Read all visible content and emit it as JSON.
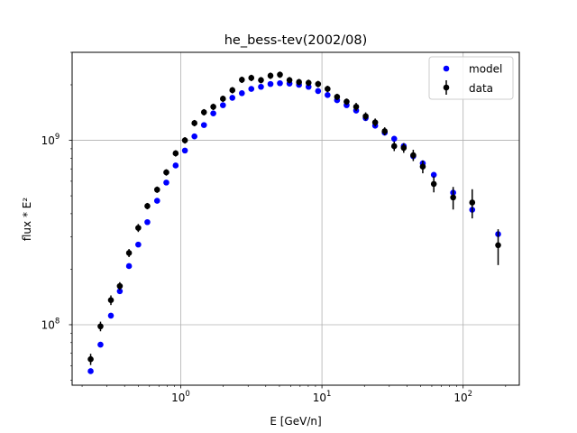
{
  "chart_data": {
    "type": "scatter",
    "title": "he_bess-tev(2002/08)",
    "xlabel": "E [GeV/n]",
    "ylabel": "flux * E²",
    "xscale": "log",
    "yscale": "log",
    "xlim": [
      0.17,
      250
    ],
    "ylim": [
      47000000.0,
      3000000000.0
    ],
    "grid": true,
    "legend_loc": "top-right",
    "x_ticks": [
      {
        "value": 1,
        "base": "10",
        "exp": "0"
      },
      {
        "value": 10,
        "base": "10",
        "exp": "1"
      },
      {
        "value": 100,
        "base": "10",
        "exp": "2"
      }
    ],
    "y_ticks": [
      {
        "value": 100000000.0,
        "base": "10",
        "exp": "8"
      },
      {
        "value": 1000000000.0,
        "base": "10",
        "exp": "9"
      }
    ],
    "series": [
      {
        "name": "model",
        "marker": "dot",
        "color": "#0000ff",
        "x": [
          0.23,
          0.27,
          0.32,
          0.37,
          0.43,
          0.5,
          0.58,
          0.68,
          0.79,
          0.92,
          1.07,
          1.25,
          1.46,
          1.7,
          1.99,
          2.32,
          2.71,
          3.16,
          3.7,
          4.32,
          5.04,
          5.89,
          6.88,
          8.04,
          9.39,
          10.96,
          12.8,
          14.95,
          17.47,
          20.4,
          23.83,
          27.83,
          32.5,
          37.96,
          44.34,
          51.79,
          62.0,
          85.0,
          116.0,
          177.0
        ],
        "y": [
          56000000.0,
          78000000.0,
          112000000.0,
          152000000.0,
          208000000.0,
          272000000.0,
          360000000.0,
          470000000.0,
          590000000.0,
          730000000.0,
          880000000.0,
          1050000000.0,
          1210000000.0,
          1400000000.0,
          1550000000.0,
          1700000000.0,
          1800000000.0,
          1900000000.0,
          1950000000.0,
          2020000000.0,
          2040000000.0,
          2030000000.0,
          2000000000.0,
          1950000000.0,
          1850000000.0,
          1760000000.0,
          1650000000.0,
          1550000000.0,
          1450000000.0,
          1320000000.0,
          1200000000.0,
          1100000000.0,
          1020000000.0,
          930000000.0,
          820000000.0,
          750000000.0,
          650000000.0,
          520000000.0,
          420000000.0,
          310000000.0
        ]
      },
      {
        "name": "data",
        "marker": "dot-errorbar",
        "color": "#000000",
        "x": [
          0.23,
          0.27,
          0.32,
          0.37,
          0.43,
          0.5,
          0.58,
          0.68,
          0.79,
          0.92,
          1.07,
          1.25,
          1.46,
          1.7,
          1.99,
          2.32,
          2.71,
          3.16,
          3.7,
          4.32,
          5.04,
          5.89,
          6.88,
          8.04,
          9.39,
          10.96,
          12.8,
          14.95,
          17.47,
          20.4,
          23.83,
          27.83,
          32.5,
          37.96,
          44.34,
          51.79,
          62.0,
          85.0,
          116.0,
          177.0
        ],
        "y": [
          65000000.0,
          98000000.0,
          136000000.0,
          162000000.0,
          245000000.0,
          335000000.0,
          440000000.0,
          540000000.0,
          670000000.0,
          850000000.0,
          1000000000.0,
          1240000000.0,
          1420000000.0,
          1520000000.0,
          1680000000.0,
          1870000000.0,
          2130000000.0,
          2180000000.0,
          2120000000.0,
          2240000000.0,
          2270000000.0,
          2120000000.0,
          2070000000.0,
          2050000000.0,
          2020000000.0,
          1900000000.0,
          1720000000.0,
          1620000000.0,
          1520000000.0,
          1350000000.0,
          1250000000.0,
          1120000000.0,
          930000000.0,
          910000000.0,
          830000000.0,
          720000000.0,
          580000000.0,
          490000000.0,
          460000000.0,
          270000000.0
        ],
        "yerr": [
          0.07,
          0.06,
          0.06,
          0.05,
          0.05,
          0.05,
          0.04,
          0.04,
          0.04,
          0.04,
          0.04,
          0.04,
          0.04,
          0.04,
          0.04,
          0.04,
          0.04,
          0.04,
          0.04,
          0.04,
          0.04,
          0.04,
          0.04,
          0.04,
          0.04,
          0.04,
          0.04,
          0.04,
          0.05,
          0.05,
          0.05,
          0.05,
          0.06,
          0.06,
          0.07,
          0.08,
          0.1,
          0.14,
          0.18,
          0.22
        ]
      }
    ]
  }
}
